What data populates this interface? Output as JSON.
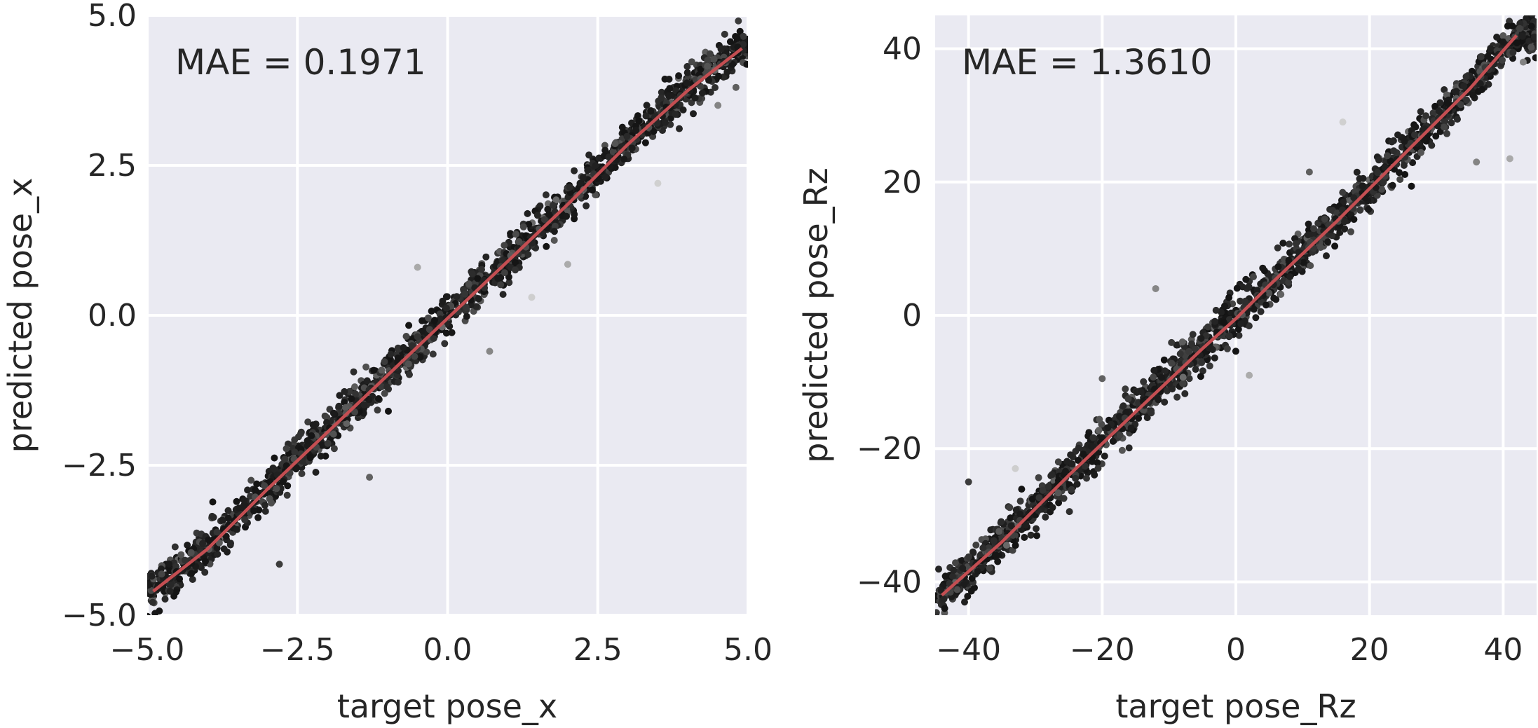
{
  "chart_data": [
    {
      "type": "scatter",
      "xlabel": "target pose_x",
      "ylabel": "predicted pose_x",
      "annotation": "MAE = 0.1971",
      "xlim": [
        -5.0,
        5.0
      ],
      "ylim": [
        -5.0,
        5.0
      ],
      "xticks": [
        -5.0,
        -2.5,
        0.0,
        2.5,
        5.0
      ],
      "xtick_labels": [
        "−5.0",
        "−2.5",
        "0.0",
        "2.5",
        "5.0"
      ],
      "yticks": [
        -5.0,
        -2.5,
        0.0,
        2.5,
        5.0
      ],
      "ytick_labels": [
        "−5.0",
        "−2.5",
        "0.0",
        "2.5",
        "5.0"
      ],
      "grid": true,
      "point_color": "#1a1a1a",
      "line_color": "#c44e52",
      "trend_line": {
        "x": [
          -4.9,
          -4.0,
          -3.0,
          -2.0,
          -1.0,
          0.0,
          1.0,
          2.0,
          3.0,
          4.0,
          4.9
        ],
        "y": [
          -4.6,
          -3.9,
          -2.9,
          -1.95,
          -1.0,
          -0.05,
          0.9,
          1.85,
          2.85,
          3.75,
          4.45
        ]
      },
      "outliers": [
        {
          "x": -2.8,
          "y": -4.15
        },
        {
          "x": -1.3,
          "y": -2.7
        },
        {
          "x": 0.7,
          "y": -0.6
        },
        {
          "x": 2.0,
          "y": 0.85
        },
        {
          "x": 3.5,
          "y": 2.2
        },
        {
          "x": 4.8,
          "y": 3.8
        },
        {
          "x": 4.5,
          "y": 3.5
        },
        {
          "x": -0.5,
          "y": 0.8
        },
        {
          "x": 1.4,
          "y": 0.3
        }
      ],
      "band_sigma": 0.15,
      "n_points": 1600
    },
    {
      "type": "scatter",
      "xlabel": "target pose_Rz",
      "ylabel": "predicted pose_Rz",
      "annotation": "MAE = 1.3610",
      "xlim": [
        -45,
        45
      ],
      "ylim": [
        -45,
        45
      ],
      "xticks": [
        -40,
        -20,
        0,
        20,
        40
      ],
      "xtick_labels": [
        "−40",
        "−20",
        "0",
        "20",
        "40"
      ],
      "yticks": [
        -40,
        -20,
        0,
        20,
        40
      ],
      "ytick_labels": [
        "−40",
        "−20",
        "0",
        "20",
        "40"
      ],
      "grid": true,
      "point_color": "#1a1a1a",
      "line_color": "#c44e52",
      "trend_line": {
        "x": [
          -44,
          -35,
          -25,
          -15,
          -5,
          0,
          5,
          15,
          25,
          35,
          42
        ],
        "y": [
          -42,
          -34,
          -24,
          -14.5,
          -5,
          -0.5,
          4.5,
          14,
          24,
          34,
          42
        ]
      },
      "outliers": [
        {
          "x": -40,
          "y": -25
        },
        {
          "x": -20,
          "y": -9.5
        },
        {
          "x": -12,
          "y": 4
        },
        {
          "x": 2,
          "y": -9
        },
        {
          "x": 16,
          "y": 29
        },
        {
          "x": 11,
          "y": 21.5
        },
        {
          "x": 36,
          "y": 23
        },
        {
          "x": 41,
          "y": 23.5
        },
        {
          "x": -33,
          "y": -23
        },
        {
          "x": -8,
          "y": -4
        },
        {
          "x": 43,
          "y": 38
        }
      ],
      "band_sigma": 1.3,
      "n_points": 1700
    }
  ]
}
